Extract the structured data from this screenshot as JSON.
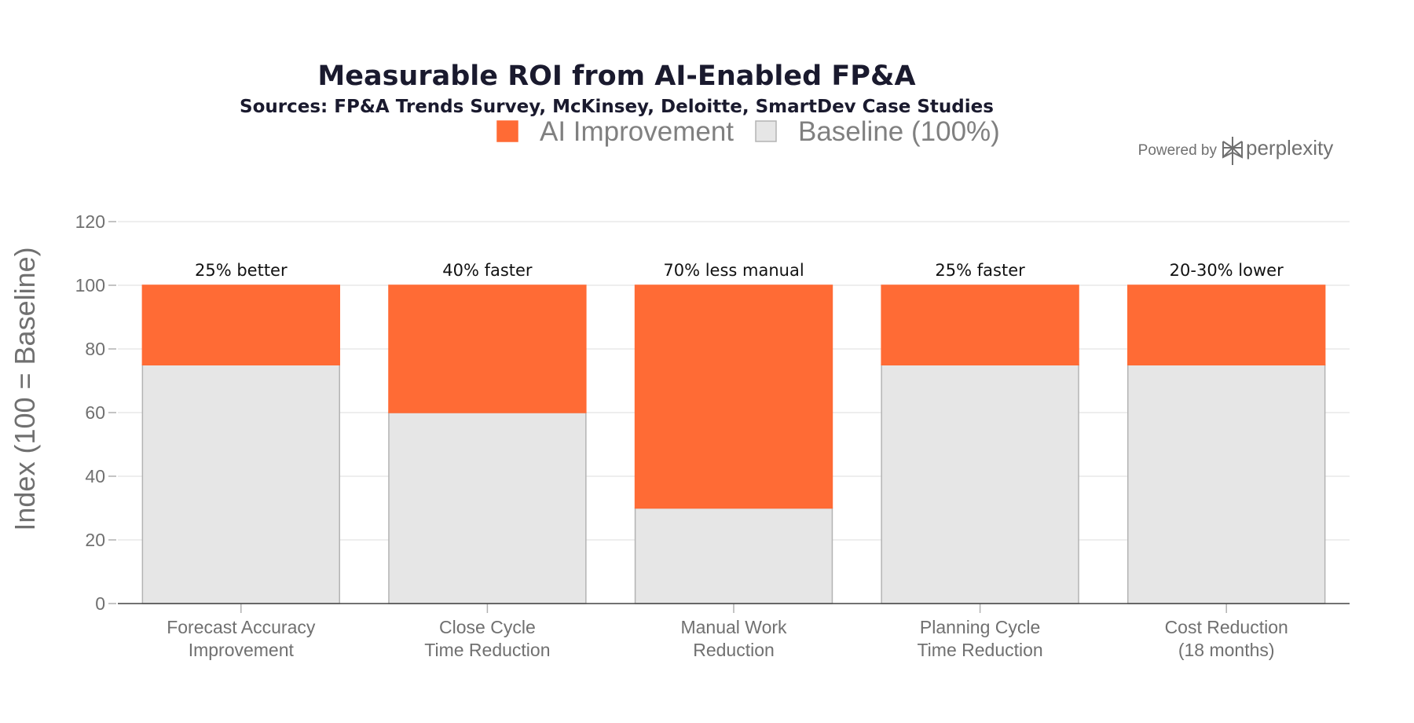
{
  "chart_data": {
    "type": "bar",
    "stacked": true,
    "title": "Measurable ROI from AI-Enabled FP&A",
    "subtitle": "Sources: FP&A Trends Survey, McKinsey, Deloitte, SmartDev Case Studies",
    "ylabel": "Index (100 = Baseline)",
    "xlabel": "",
    "ylim": [
      0,
      120
    ],
    "yticks": [
      0,
      20,
      40,
      60,
      80,
      100,
      120
    ],
    "grid": true,
    "legend_position": "top-center",
    "categories": [
      [
        "Forecast Accuracy",
        "Improvement"
      ],
      [
        "Close Cycle",
        "Time Reduction"
      ],
      [
        "Manual Work",
        "Reduction"
      ],
      [
        "Planning Cycle",
        "Time Reduction"
      ],
      [
        "Cost Reduction",
        "(18 months)"
      ]
    ],
    "series": [
      {
        "name": "Baseline (100%)",
        "color": "#e6e6e6",
        "stroke": "#b3b3b3",
        "values": [
          75,
          60,
          30,
          75,
          75
        ]
      },
      {
        "name": "AI Improvement",
        "color": "#ff6b35",
        "stroke": "#ff6b35",
        "values": [
          25,
          40,
          70,
          25,
          25
        ]
      }
    ],
    "legend_order": [
      "AI Improvement",
      "Baseline (100%)"
    ],
    "data_labels": [
      "25% better",
      "40% faster",
      "70% less manual",
      "25% faster",
      "20-30% lower"
    ]
  },
  "branding": {
    "prefix": "Powered by",
    "name": "perplexity",
    "icon": "perplexity-logo-icon"
  },
  "colors": {
    "accent": "#ff6b35",
    "baseline": "#e6e6e6",
    "title": "#1a1a2e",
    "grid": "#e8e8e8",
    "axis_text": "#707070"
  }
}
